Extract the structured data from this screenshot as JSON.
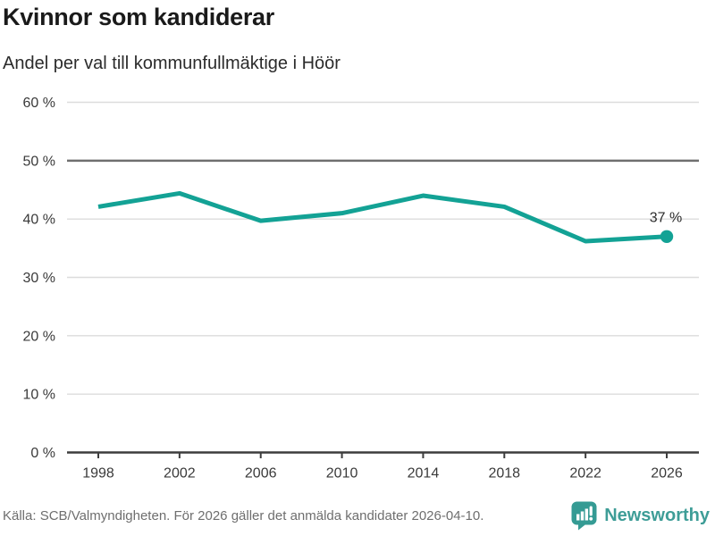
{
  "header": {
    "title": "Kvinnor som kandiderar",
    "subtitle": "Andel per val till kommunfullmäktige i Höör"
  },
  "chart_data": {
    "type": "line",
    "x": [
      1998,
      2002,
      2006,
      2010,
      2014,
      2018,
      2022,
      2026
    ],
    "values": [
      42.1,
      44.4,
      39.7,
      41.0,
      44.0,
      42.1,
      36.2,
      37
    ],
    "title": "Kvinnor som kandiderar",
    "subtitle": "Andel per val till kommunfullmäktige i Höör",
    "xlabel": "",
    "ylabel": "",
    "ylim": [
      0,
      60
    ],
    "yticks": [
      0,
      10,
      20,
      30,
      40,
      50,
      60
    ],
    "ytick_suffix": " %",
    "reference_line": 50,
    "grid": true,
    "legend": "none",
    "end_label": "37 %",
    "colors": {
      "line": "#13a295",
      "dot": "#13a295",
      "grid": "#dcdcdc",
      "reference": "#6f6f6f",
      "axis": "#3d3d3d",
      "tick_text": "#3a3a3a",
      "end_label_text": "#2b2b2b"
    }
  },
  "footer": {
    "source": "Källa: SCB/Valmyndigheten. För 2026 gäller det anmälda kandidater 2026-04-10.",
    "brand": "Newsworthy",
    "brand_color": "#3e9d97",
    "logo_icon": "bar-chart-speech-bubble-icon",
    "logo_color": "#359b94"
  }
}
